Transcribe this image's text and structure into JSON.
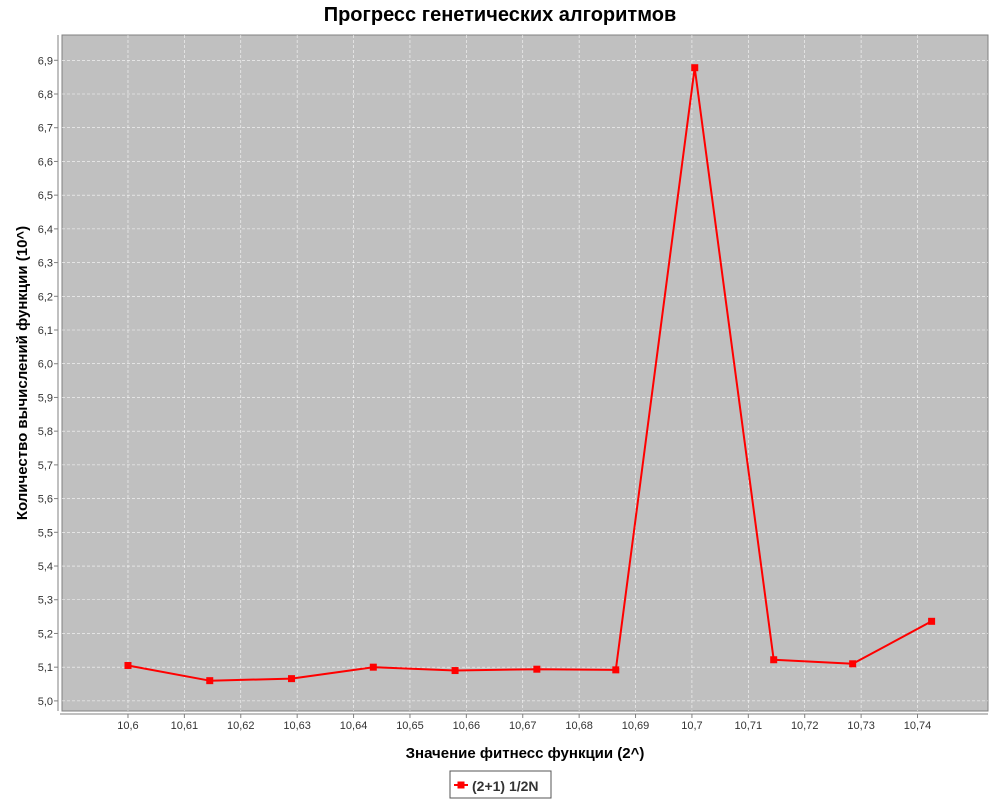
{
  "chart_data": {
    "type": "line",
    "title": "Прогресс генетических алгоритмов",
    "xlabel": "Значение фитнесс функции (2^)",
    "ylabel": "Количество вычислений функции (10^)",
    "xlim": [
      10.5883,
      10.7525
    ],
    "ylim": [
      4.97,
      6.975
    ],
    "x_ticks": [
      10.6,
      10.61,
      10.62,
      10.63,
      10.64,
      10.65,
      10.66,
      10.67,
      10.68,
      10.69,
      10.7,
      10.71,
      10.72,
      10.73,
      10.74
    ],
    "x_tick_labels": [
      "10,6",
      "10,61",
      "10,62",
      "10,63",
      "10,64",
      "10,65",
      "10,66",
      "10,67",
      "10,68",
      "10,69",
      "10,7",
      "10,71",
      "10,72",
      "10,73",
      "10,74"
    ],
    "y_ticks": [
      5.0,
      5.1,
      5.2,
      5.3,
      5.4,
      5.5,
      5.6,
      5.7,
      5.8,
      5.9,
      6.0,
      6.1,
      6.2,
      6.3,
      6.4,
      6.5,
      6.6,
      6.7,
      6.8,
      6.9
    ],
    "y_tick_labels": [
      "5,0",
      "5,1",
      "5,2",
      "5,3",
      "5,4",
      "5,5",
      "5,6",
      "5,7",
      "5,8",
      "5,9",
      "6,0",
      "6,1",
      "6,2",
      "6,3",
      "6,4",
      "6,5",
      "6,6",
      "6,7",
      "6,8",
      "6,9"
    ],
    "grid": true,
    "legend_position": "bottom-center",
    "plot_background": "#c0c0c0",
    "series": [
      {
        "name": "(2+1) 1/2N",
        "color": "#ff0000",
        "marker": "square",
        "x": [
          10.6,
          10.6145,
          10.629,
          10.6435,
          10.658,
          10.6725,
          10.6865,
          10.7005,
          10.7145,
          10.7285,
          10.7425
        ],
        "y": [
          5.105,
          5.06,
          5.066,
          5.1,
          5.09,
          5.094,
          5.092,
          6.878,
          5.122,
          5.11,
          5.236
        ]
      }
    ]
  }
}
